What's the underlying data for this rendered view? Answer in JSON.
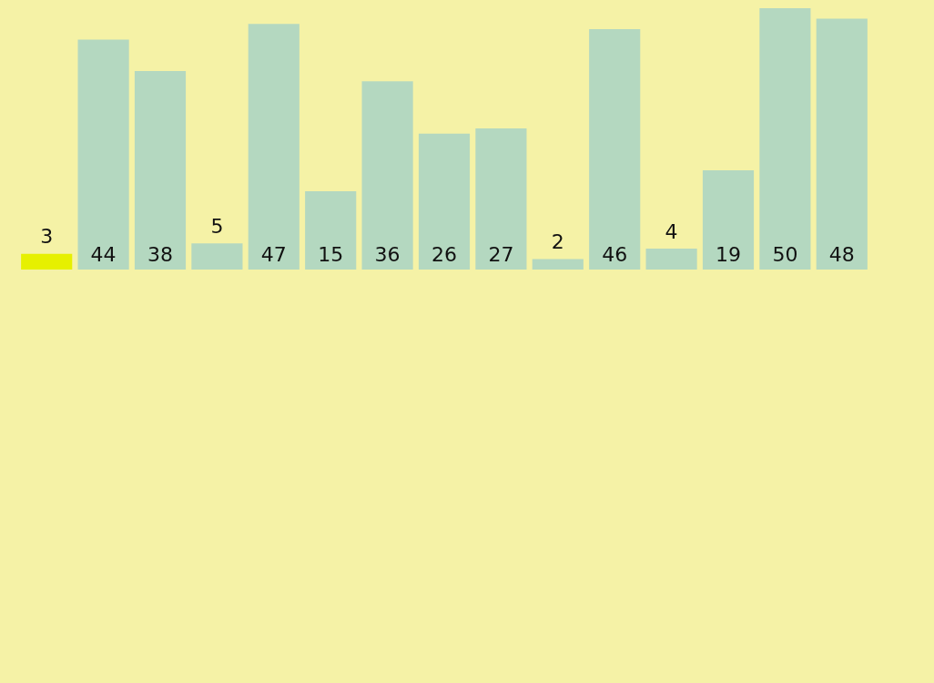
{
  "chart_data": {
    "type": "bar",
    "categories": [
      null,
      null,
      null,
      null,
      null,
      null,
      null,
      null,
      null,
      null,
      null,
      null,
      null,
      null,
      null
    ],
    "values": [
      3,
      44,
      38,
      5,
      47,
      15,
      36,
      26,
      27,
      2,
      46,
      4,
      19,
      50,
      48
    ],
    "colors": [
      "#e6f000",
      "#b4d8c0",
      "#b4d8c0",
      "#b4d8c0",
      "#b4d8c0",
      "#b4d8c0",
      "#b4d8c0",
      "#b4d8c0",
      "#b4d8c0",
      "#b4d8c0",
      "#b4d8c0",
      "#b4d8c0",
      "#b4d8c0",
      "#b4d8c0",
      "#b4d8c0"
    ],
    "data_labels": true
  }
}
